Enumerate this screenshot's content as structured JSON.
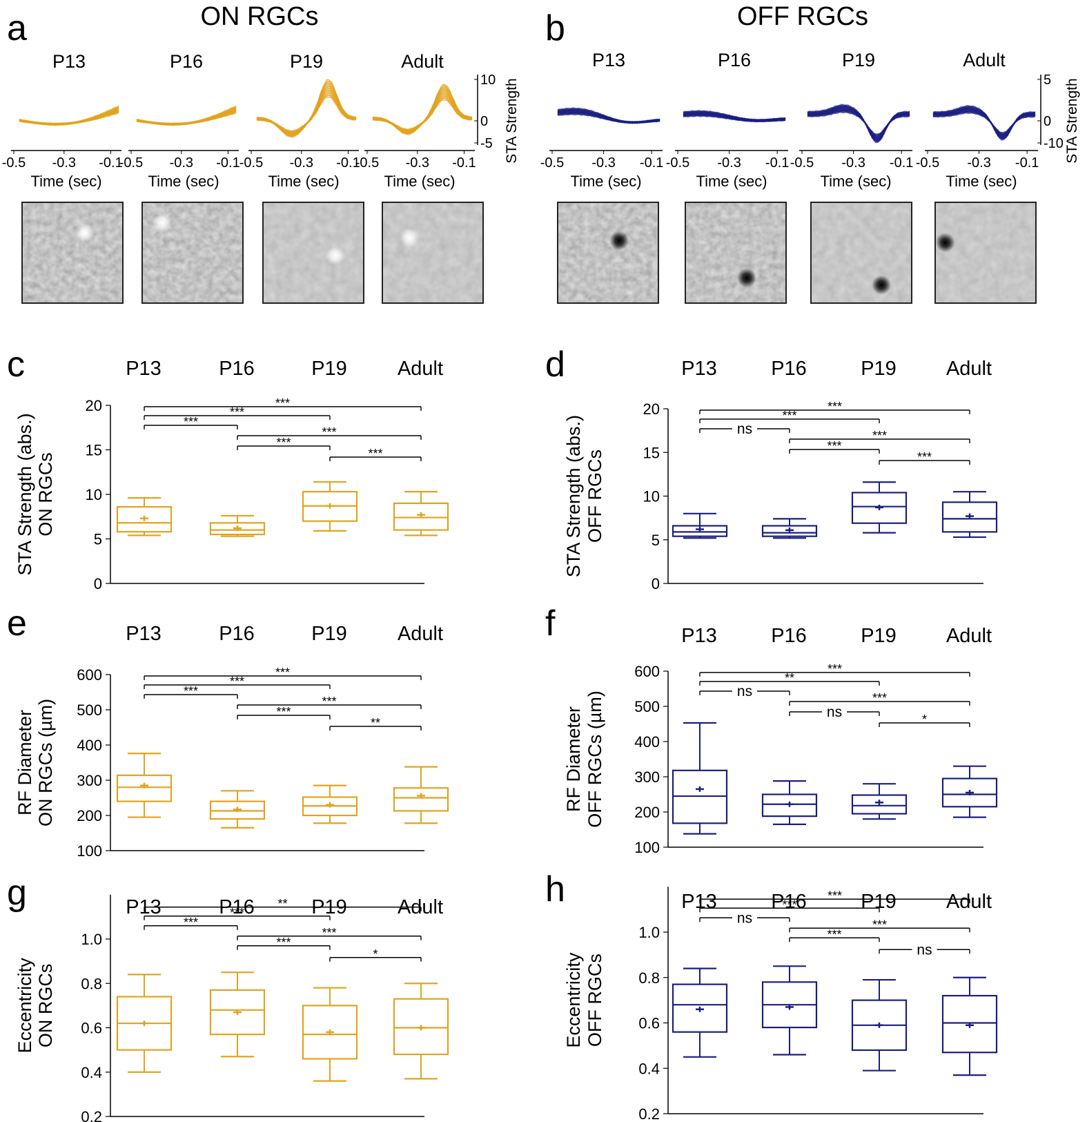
{
  "colors": {
    "on": "#e3a31e",
    "off": "#1a1f80",
    "axis": "#000000"
  },
  "titles": {
    "on": "ON RGCs",
    "off": "OFF RGCs"
  },
  "panel_letters": {
    "a": "a",
    "b": "b",
    "c": "c",
    "d": "d",
    "e": "e",
    "f": "f",
    "g": "g",
    "h": "h"
  },
  "groups": [
    "P13",
    "P16",
    "P19",
    "Adult"
  ],
  "sta": {
    "xlabel": "Time (sec)",
    "ylabel": "STA Strength",
    "xticks": [
      "-0.5",
      "-0.3",
      "-0.1"
    ],
    "on_yticks": [
      "10",
      "0",
      "-5"
    ],
    "off_yticks": [
      "5",
      "0",
      "-10"
    ]
  },
  "rf_images": {
    "on": [
      {
        "group": "P13",
        "spot": "bright",
        "fx": 0.62,
        "fy": 0.3
      },
      {
        "group": "P16",
        "spot": "bright",
        "fx": 0.2,
        "fy": 0.2
      },
      {
        "group": "P19",
        "spot": "bright",
        "fx": 0.72,
        "fy": 0.53
      },
      {
        "group": "Adult",
        "spot": "bright",
        "fx": 0.27,
        "fy": 0.35
      }
    ],
    "off": [
      {
        "group": "P13",
        "spot": "dark",
        "fx": 0.61,
        "fy": 0.38
      },
      {
        "group": "P16",
        "spot": "dark",
        "fx": 0.61,
        "fy": 0.75
      },
      {
        "group": "P19",
        "spot": "dark",
        "fx": 0.7,
        "fy": 0.82
      },
      {
        "group": "Adult",
        "spot": "dark",
        "fx": 0.1,
        "fy": 0.4
      }
    ]
  },
  "chart_data": [
    {
      "type": "box",
      "panel": "c",
      "cell": "ON",
      "ylabel_lines": [
        "STA Strength (abs.)",
        "ON RGCs"
      ],
      "categories": [
        "P13",
        "P16",
        "P19",
        "Adult"
      ],
      "ylim": [
        0,
        20
      ],
      "yticks": [
        0,
        5,
        10,
        15,
        20
      ],
      "ytick_labels": [
        "0",
        "5",
        "10",
        "15",
        "20"
      ],
      "boxes": [
        {
          "min": 5.4,
          "q1": 5.8,
          "median": 6.8,
          "q3": 8.6,
          "max": 9.6,
          "mean": 7.3
        },
        {
          "min": 5.3,
          "q1": 5.5,
          "median": 6.0,
          "q3": 6.8,
          "max": 7.6,
          "mean": 6.2
        },
        {
          "min": 5.9,
          "q1": 7.0,
          "median": 8.7,
          "q3": 10.3,
          "max": 11.4,
          "mean": 8.7
        },
        {
          "min": 5.4,
          "q1": 6.0,
          "median": 7.4,
          "q3": 9.0,
          "max": 10.3,
          "mean": 7.7
        }
      ],
      "comparisons": [
        {
          "a": 0,
          "b": 3,
          "label": "***"
        },
        {
          "a": 0,
          "b": 2,
          "label": "***"
        },
        {
          "a": 0,
          "b": 1,
          "label": "***"
        },
        {
          "a": 1,
          "b": 3,
          "label": "***"
        },
        {
          "a": 1,
          "b": 2,
          "label": "***"
        },
        {
          "a": 2,
          "b": 3,
          "label": "***"
        }
      ]
    },
    {
      "type": "box",
      "panel": "d",
      "cell": "OFF",
      "ylabel_lines": [
        "STA Strength (abs.)",
        "OFF RGCs"
      ],
      "categories": [
        "P13",
        "P16",
        "P19",
        "Adult"
      ],
      "ylim": [
        0,
        20
      ],
      "yticks": [
        0,
        5,
        10,
        15,
        20
      ],
      "ytick_labels": [
        "0",
        "5",
        "10",
        "15",
        "20"
      ],
      "boxes": [
        {
          "min": 5.2,
          "q1": 5.4,
          "median": 5.9,
          "q3": 6.6,
          "max": 8.0,
          "mean": 6.2
        },
        {
          "min": 5.2,
          "q1": 5.4,
          "median": 5.8,
          "q3": 6.6,
          "max": 7.4,
          "mean": 6.1
        },
        {
          "min": 5.8,
          "q1": 6.9,
          "median": 8.8,
          "q3": 10.4,
          "max": 11.6,
          "mean": 8.7
        },
        {
          "min": 5.3,
          "q1": 5.9,
          "median": 7.4,
          "q3": 9.3,
          "max": 10.5,
          "mean": 7.7
        }
      ],
      "comparisons": [
        {
          "a": 0,
          "b": 3,
          "label": "***"
        },
        {
          "a": 0,
          "b": 2,
          "label": "***"
        },
        {
          "a": 0,
          "b": 1,
          "label": "ns"
        },
        {
          "a": 1,
          "b": 3,
          "label": "***"
        },
        {
          "a": 1,
          "b": 2,
          "label": "***"
        },
        {
          "a": 2,
          "b": 3,
          "label": "***"
        }
      ]
    },
    {
      "type": "box",
      "panel": "e",
      "cell": "ON",
      "ylabel_lines": [
        "RF Diameter",
        "ON RGCs (µm)"
      ],
      "categories": [
        "P13",
        "P16",
        "P19",
        "Adult"
      ],
      "ylim": [
        100,
        600
      ],
      "yticks": [
        100,
        200,
        300,
        400,
        500,
        600
      ],
      "ytick_labels": [
        "100",
        "200",
        "300",
        "400",
        "500",
        "600"
      ],
      "boxes": [
        {
          "min": 195,
          "q1": 240,
          "median": 280,
          "q3": 314,
          "max": 376,
          "mean": 285
        },
        {
          "min": 165,
          "q1": 190,
          "median": 213,
          "q3": 240,
          "max": 270,
          "mean": 217
        },
        {
          "min": 178,
          "q1": 200,
          "median": 227,
          "q3": 252,
          "max": 285,
          "mean": 230
        },
        {
          "min": 178,
          "q1": 213,
          "median": 250,
          "q3": 278,
          "max": 338,
          "mean": 256
        }
      ],
      "comparisons": [
        {
          "a": 0,
          "b": 3,
          "label": "***"
        },
        {
          "a": 0,
          "b": 2,
          "label": "***"
        },
        {
          "a": 0,
          "b": 1,
          "label": "***"
        },
        {
          "a": 1,
          "b": 3,
          "label": "***"
        },
        {
          "a": 1,
          "b": 2,
          "label": "***"
        },
        {
          "a": 2,
          "b": 3,
          "label": "**"
        }
      ]
    },
    {
      "type": "box",
      "panel": "f",
      "cell": "OFF",
      "ylabel_lines": [
        "RF Diameter",
        "OFF RGCs (µm)"
      ],
      "categories": [
        "P13",
        "P16",
        "P19",
        "Adult"
      ],
      "ylim": [
        100,
        600
      ],
      "yticks": [
        100,
        200,
        300,
        400,
        500,
        600
      ],
      "ytick_labels": [
        "100",
        "200",
        "300",
        "400",
        "500",
        "600"
      ],
      "boxes": [
        {
          "min": 138,
          "q1": 168,
          "median": 245,
          "q3": 318,
          "max": 453,
          "mean": 265
        },
        {
          "min": 165,
          "q1": 188,
          "median": 222,
          "q3": 250,
          "max": 288,
          "mean": 222
        },
        {
          "min": 180,
          "q1": 195,
          "median": 218,
          "q3": 248,
          "max": 280,
          "mean": 227
        },
        {
          "min": 185,
          "q1": 215,
          "median": 250,
          "q3": 295,
          "max": 330,
          "mean": 255
        }
      ],
      "comparisons": [
        {
          "a": 0,
          "b": 3,
          "label": "***"
        },
        {
          "a": 0,
          "b": 2,
          "label": "**"
        },
        {
          "a": 0,
          "b": 1,
          "label": "ns"
        },
        {
          "a": 1,
          "b": 3,
          "label": "***"
        },
        {
          "a": 1,
          "b": 2,
          "label": "ns"
        },
        {
          "a": 2,
          "b": 3,
          "label": "*"
        }
      ]
    },
    {
      "type": "box",
      "panel": "g",
      "cell": "ON",
      "ylabel_lines": [
        "Eccentricity",
        "ON RGCs"
      ],
      "categories": [
        "P13",
        "P16",
        "P19",
        "Adult"
      ],
      "ylim": [
        0.2,
        1.2
      ],
      "yticks": [
        0.2,
        0.4,
        0.6,
        0.8,
        1.0
      ],
      "ytick_labels": [
        "0.2",
        "0.4",
        "0.6",
        "0.8",
        "1.0"
      ],
      "boxes": [
        {
          "min": 0.4,
          "q1": 0.5,
          "median": 0.62,
          "q3": 0.74,
          "max": 0.84,
          "mean": 0.62
        },
        {
          "min": 0.47,
          "q1": 0.57,
          "median": 0.68,
          "q3": 0.77,
          "max": 0.85,
          "mean": 0.67
        },
        {
          "min": 0.36,
          "q1": 0.46,
          "median": 0.57,
          "q3": 0.7,
          "max": 0.78,
          "mean": 0.58
        },
        {
          "min": 0.37,
          "q1": 0.48,
          "median": 0.6,
          "q3": 0.73,
          "max": 0.8,
          "mean": 0.6
        }
      ],
      "comparisons": [
        {
          "a": 0,
          "b": 3,
          "label": "**"
        },
        {
          "a": 0,
          "b": 2,
          "label": "***"
        },
        {
          "a": 0,
          "b": 1,
          "label": "***"
        },
        {
          "a": 1,
          "b": 3,
          "label": "***"
        },
        {
          "a": 1,
          "b": 2,
          "label": "***"
        },
        {
          "a": 2,
          "b": 3,
          "label": "*"
        }
      ]
    },
    {
      "type": "box",
      "panel": "h",
      "cell": "OFF",
      "ylabel_lines": [
        "Eccentricity",
        "OFF RGCs"
      ],
      "categories": [
        "P13",
        "P16",
        "P19",
        "Adult"
      ],
      "ylim": [
        0.2,
        1.2
      ],
      "yticks": [
        0.2,
        0.4,
        0.6,
        0.8,
        1.0
      ],
      "ytick_labels": [
        "0.2",
        "0.4",
        "0.6",
        "0.8",
        "1.0"
      ],
      "boxes": [
        {
          "min": 0.45,
          "q1": 0.56,
          "median": 0.68,
          "q3": 0.77,
          "max": 0.84,
          "mean": 0.66
        },
        {
          "min": 0.46,
          "q1": 0.58,
          "median": 0.68,
          "q3": 0.78,
          "max": 0.85,
          "mean": 0.67
        },
        {
          "min": 0.39,
          "q1": 0.48,
          "median": 0.59,
          "q3": 0.7,
          "max": 0.79,
          "mean": 0.59
        },
        {
          "min": 0.37,
          "q1": 0.47,
          "median": 0.6,
          "q3": 0.72,
          "max": 0.8,
          "mean": 0.59
        }
      ],
      "comparisons": [
        {
          "a": 0,
          "b": 3,
          "label": "***"
        },
        {
          "a": 0,
          "b": 2,
          "label": "***"
        },
        {
          "a": 0,
          "b": 1,
          "label": "ns"
        },
        {
          "a": 1,
          "b": 3,
          "label": "***"
        },
        {
          "a": 1,
          "b": 2,
          "label": "***"
        },
        {
          "a": 2,
          "b": 3,
          "label": "ns"
        }
      ]
    }
  ]
}
